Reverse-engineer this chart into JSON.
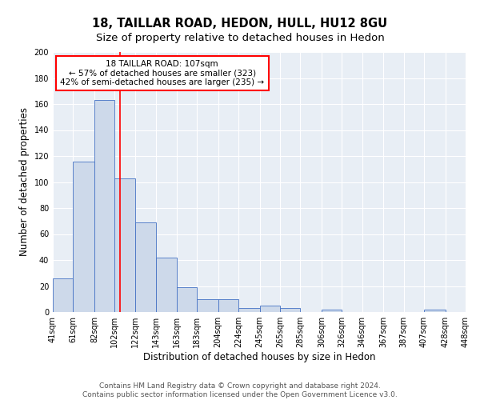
{
  "title": "18, TAILLAR ROAD, HEDON, HULL, HU12 8GU",
  "subtitle": "Size of property relative to detached houses in Hedon",
  "xlabel": "Distribution of detached houses by size in Hedon",
  "ylabel": "Number of detached properties",
  "bar_edges": [
    41,
    61,
    82,
    102,
    122,
    143,
    163,
    183,
    204,
    224,
    245,
    265,
    285,
    306,
    326,
    346,
    367,
    387,
    407,
    428,
    448
  ],
  "bar_heights": [
    26,
    116,
    163,
    103,
    69,
    42,
    19,
    10,
    10,
    3,
    5,
    3,
    0,
    2,
    0,
    0,
    0,
    0,
    2,
    0
  ],
  "bar_color": "#cdd9ea",
  "bar_edgecolor": "#4472c4",
  "vline_x": 107,
  "vline_color": "red",
  "annotation_title": "18 TAILLAR ROAD: 107sqm",
  "annotation_line1": "← 57% of detached houses are smaller (323)",
  "annotation_line2": "42% of semi-detached houses are larger (235) →",
  "annotation_box_color": "white",
  "annotation_box_edgecolor": "red",
  "ylim": [
    0,
    200
  ],
  "yticks": [
    0,
    20,
    40,
    60,
    80,
    100,
    120,
    140,
    160,
    180,
    200
  ],
  "tick_labels": [
    "41sqm",
    "61sqm",
    "82sqm",
    "102sqm",
    "122sqm",
    "143sqm",
    "163sqm",
    "183sqm",
    "204sqm",
    "224sqm",
    "245sqm",
    "265sqm",
    "285sqm",
    "306sqm",
    "326sqm",
    "346sqm",
    "367sqm",
    "387sqm",
    "407sqm",
    "428sqm",
    "448sqm"
  ],
  "footer_line1": "Contains HM Land Registry data © Crown copyright and database right 2024.",
  "footer_line2": "Contains public sector information licensed under the Open Government Licence v3.0.",
  "plot_bg_color": "#e8eef5",
  "grid_color": "white",
  "title_fontsize": 10.5,
  "subtitle_fontsize": 9.5,
  "label_fontsize": 8.5,
  "tick_fontsize": 7,
  "footer_fontsize": 6.5,
  "ann_fontsize": 7.5
}
